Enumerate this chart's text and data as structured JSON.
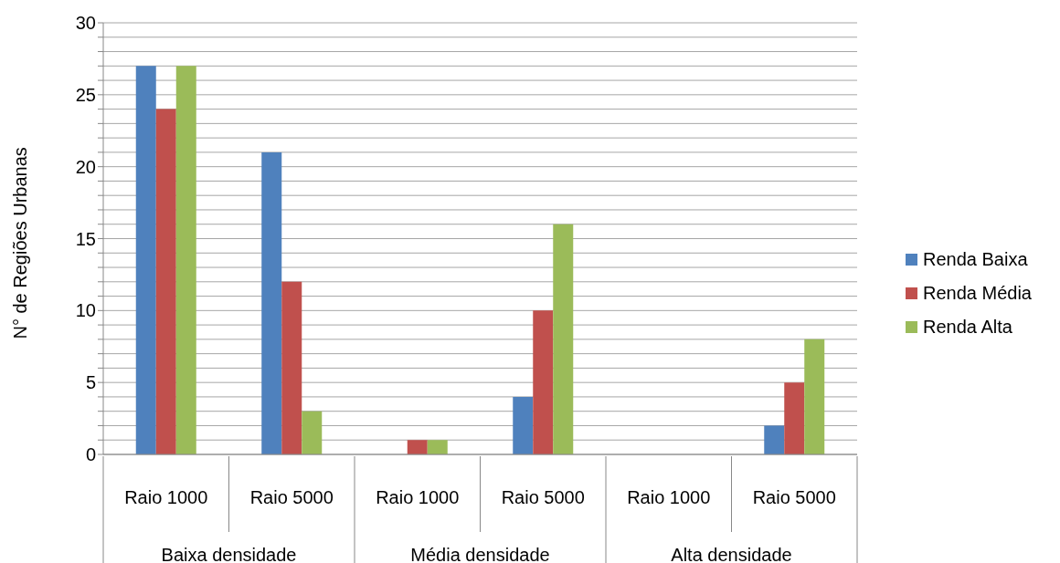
{
  "chart_data": {
    "type": "bar",
    "ylabel": "N° de Regiões Urbanas",
    "categories": [
      "Raio 1000",
      "Raio 5000",
      "Raio 1000",
      "Raio 5000",
      "Raio 1000",
      "Raio 5000"
    ],
    "annotations": [
      "Baixa densidade",
      "Média densidade",
      "Alta densidade"
    ],
    "series": [
      {
        "name": "Renda Baixa",
        "color": "#4f81bd",
        "values": [
          27,
          21,
          0,
          4,
          0,
          2
        ]
      },
      {
        "name": "Renda Média",
        "color": "#c0504d",
        "values": [
          24,
          12,
          1,
          10,
          0,
          5
        ]
      },
      {
        "name": "Renda Alta",
        "color": "#9bbb59",
        "values": [
          27,
          3,
          1,
          16,
          0,
          8
        ]
      }
    ],
    "ylim": [
      0,
      30
    ],
    "yticks": [
      0,
      {
        "value": 1,
        "label": null
      },
      {
        "value": 2,
        "label": null
      },
      {
        "value": 3,
        "label": null
      },
      {
        "value": 4,
        "label": null
      },
      5,
      {
        "value": 6,
        "label": null
      },
      {
        "value": 7,
        "label": null
      },
      {
        "value": 8,
        "label": null
      },
      {
        "value": 9,
        "label": null
      },
      10,
      {
        "value": 11,
        "label": null
      },
      {
        "value": 12,
        "label": null
      },
      {
        "value": 13,
        "label": null
      },
      {
        "value": 14,
        "label": null
      },
      15,
      {
        "value": 16,
        "label": null
      },
      {
        "value": 17,
        "label": null
      },
      {
        "value": 18,
        "label": null
      },
      {
        "value": 19,
        "label": null
      },
      20,
      {
        "value": 21,
        "label": null
      },
      {
        "value": 22,
        "label": null
      },
      {
        "value": 23,
        "label": null
      },
      {
        "value": 24,
        "label": null
      },
      25,
      {
        "value": 26,
        "label": null
      },
      {
        "value": 27,
        "label": null
      },
      {
        "value": 28,
        "label": null
      },
      {
        "value": 29,
        "label": null
      },
      30
    ],
    "grid": "y",
    "legend": "right"
  }
}
